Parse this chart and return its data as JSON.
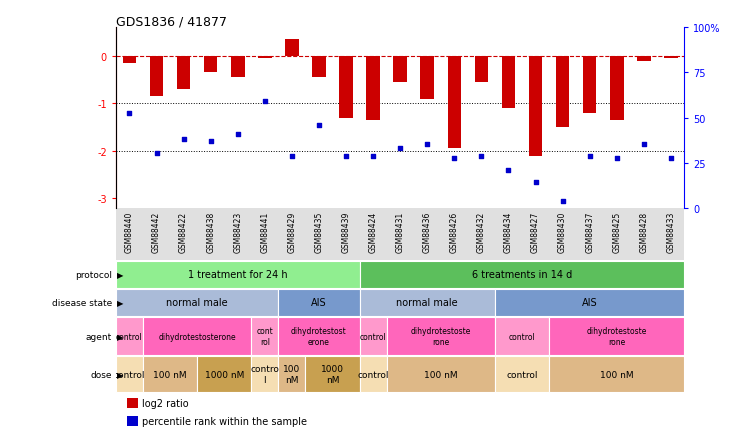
{
  "title": "GDS1836 / 41877",
  "samples": [
    "GSM88440",
    "GSM88442",
    "GSM88422",
    "GSM88438",
    "GSM88423",
    "GSM88441",
    "GSM88429",
    "GSM88435",
    "GSM88439",
    "GSM88424",
    "GSM88431",
    "GSM88436",
    "GSM88426",
    "GSM88432",
    "GSM88434",
    "GSM88427",
    "GSM88430",
    "GSM88437",
    "GSM88425",
    "GSM88428",
    "GSM88433"
  ],
  "log2_ratio": [
    -0.15,
    -0.85,
    -0.7,
    -0.35,
    -0.45,
    -0.05,
    0.35,
    -0.45,
    -1.3,
    -1.35,
    -0.55,
    -0.9,
    -1.95,
    -0.55,
    -1.1,
    -2.1,
    -1.5,
    -1.2,
    -1.35,
    -0.1,
    -0.05
  ],
  "percentile_rank_left": [
    -1.2,
    -2.05,
    -1.75,
    -1.8,
    -1.65,
    -0.95,
    -2.1,
    -1.45,
    -2.1,
    -2.1,
    -1.95,
    -1.85,
    -2.15,
    -2.1,
    -2.4,
    -2.65,
    -3.05,
    -2.1,
    -2.15,
    -1.85,
    -2.15
  ],
  "protocol_groups": [
    {
      "label": "1 treatment for 24 h",
      "start": 0,
      "end": 8,
      "color": "#90EE90"
    },
    {
      "label": "6 treatments in 14 d",
      "start": 9,
      "end": 20,
      "color": "#5CBF5C"
    }
  ],
  "disease_groups": [
    {
      "label": "normal male",
      "start": 0,
      "end": 5,
      "color": "#AABBD8"
    },
    {
      "label": "AIS",
      "start": 6,
      "end": 8,
      "color": "#7799CC"
    },
    {
      "label": "normal male",
      "start": 9,
      "end": 13,
      "color": "#AABBD8"
    },
    {
      "label": "AIS",
      "start": 14,
      "end": 20,
      "color": "#7799CC"
    }
  ],
  "agent_groups": [
    {
      "label": "control",
      "start": 0,
      "end": 0,
      "color": "#FF99CC"
    },
    {
      "label": "dihydrotestosterone",
      "start": 1,
      "end": 4,
      "color": "#FF66BB"
    },
    {
      "label": "cont\nrol",
      "start": 5,
      "end": 5,
      "color": "#FF99CC"
    },
    {
      "label": "dihydrotestost\nerone",
      "start": 6,
      "end": 8,
      "color": "#FF66BB"
    },
    {
      "label": "control",
      "start": 9,
      "end": 9,
      "color": "#FF99CC"
    },
    {
      "label": "dihydrotestoste\nrone",
      "start": 10,
      "end": 13,
      "color": "#FF66BB"
    },
    {
      "label": "control",
      "start": 14,
      "end": 15,
      "color": "#FF99CC"
    },
    {
      "label": "dihydrotestoste\nrone",
      "start": 16,
      "end": 20,
      "color": "#FF66BB"
    }
  ],
  "dose_groups": [
    {
      "label": "control",
      "start": 0,
      "end": 0,
      "color": "#F5DEB3"
    },
    {
      "label": "100 nM",
      "start": 1,
      "end": 2,
      "color": "#DEB887"
    },
    {
      "label": "1000 nM",
      "start": 3,
      "end": 4,
      "color": "#C8A050"
    },
    {
      "label": "contro\nl",
      "start": 5,
      "end": 5,
      "color": "#F5DEB3"
    },
    {
      "label": "100\nnM",
      "start": 6,
      "end": 6,
      "color": "#DEB887"
    },
    {
      "label": "1000\nnM",
      "start": 7,
      "end": 8,
      "color": "#C8A050"
    },
    {
      "label": "control",
      "start": 9,
      "end": 9,
      "color": "#F5DEB3"
    },
    {
      "label": "100 nM",
      "start": 10,
      "end": 13,
      "color": "#DEB887"
    },
    {
      "label": "control",
      "start": 14,
      "end": 15,
      "color": "#F5DEB3"
    },
    {
      "label": "100 nM",
      "start": 16,
      "end": 20,
      "color": "#DEB887"
    }
  ],
  "bar_color": "#CC0000",
  "dot_color": "#0000CC",
  "hline_color": "#CC0000",
  "dotted_color": "#000000",
  "ylim_left": [
    -3.2,
    0.6
  ],
  "ylim_right": [
    0,
    100
  ],
  "yticks_left": [
    0,
    -1,
    -2,
    -3
  ],
  "yticks_right": [
    0,
    25,
    50,
    75,
    100
  ],
  "right_tick_labels": [
    "0",
    "25",
    "50",
    "75",
    "100%"
  ],
  "row_labels": [
    "protocol",
    "disease state",
    "agent",
    "dose"
  ]
}
